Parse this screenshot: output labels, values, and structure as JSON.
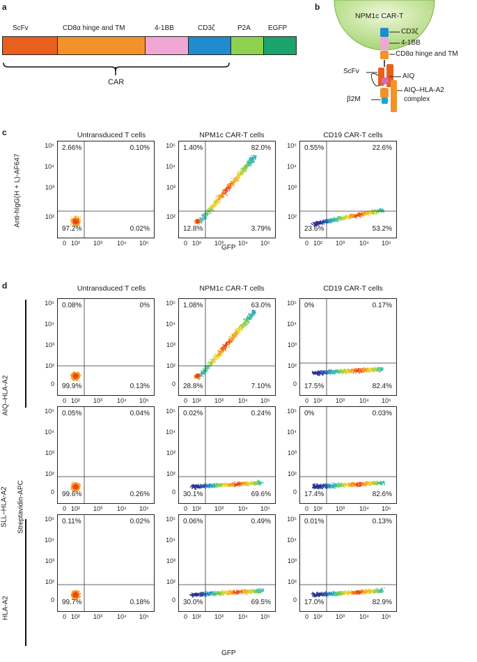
{
  "panel_a": {
    "letter": "a",
    "segments": [
      {
        "label": "ScFv",
        "color": "#e8601c"
      },
      {
        "label": "CD8α hinge and TM",
        "color": "#f4922a"
      },
      {
        "label": "4-1BB",
        "color": "#f0a7d3"
      },
      {
        "label": "CD3ζ",
        "color": "#1e8ccd"
      },
      {
        "label": "P2A",
        "color": "#8fd14f"
      },
      {
        "label": "EGFP",
        "color": "#1aa36a"
      }
    ],
    "bracket_label": "CAR"
  },
  "panel_b": {
    "letter": "b",
    "cell_label": "NPM1c CAR-T",
    "labels": [
      "CD3ζ",
      "4-1BB",
      "CD8α hinge and TM",
      "ScFv",
      "AIQ",
      "AIQ–HLA-A2",
      "complex",
      "β2M"
    ]
  },
  "panel_c": {
    "letter": "c",
    "column_titles": [
      "Untransduced T cells",
      "NPM1c CAR-T cells",
      "CD19 CAR-T cells"
    ],
    "y_axis_label": "Anti-hIgG(H + L)-AF647",
    "x_axis_label": "GFP",
    "x_ticks": [
      "0",
      "10²",
      "10³",
      "10⁴",
      "10⁵"
    ],
    "y_ticks": [
      "10⁵",
      "10⁴",
      "10³",
      "10²"
    ],
    "plots": [
      {
        "ul": "2.66%",
        "ur": "0.10%",
        "ll": "97.2%",
        "lr": "0.02%"
      },
      {
        "ul": "1.40%",
        "ur": "82.0%",
        "ll": "12.8%",
        "lr": "3.79%"
      },
      {
        "ul": "0.55%",
        "ur": "22.6%",
        "ll": "23.6%",
        "lr": "53.2%"
      }
    ]
  },
  "panel_d": {
    "letter": "d",
    "column_titles": [
      "Untransduced T cells",
      "NPM1c CAR-T cells",
      "CD19 CAR-T cells"
    ],
    "row_labels": [
      "AIQ–HLA-A2",
      "SLL–HLA-A2",
      "HLA-A2"
    ],
    "y_axis_label": "Streptavidin-APC",
    "x_axis_label": "GFP",
    "x_ticks": [
      "0",
      "10²",
      "10³",
      "10⁴",
      "10⁵"
    ],
    "y_ticks": [
      "10⁵",
      "10⁴",
      "10³",
      "10²",
      "0"
    ],
    "rows": [
      [
        {
          "ul": "0.08%",
          "ur": "0%",
          "ll": "99.9%",
          "lr": "0.13%"
        },
        {
          "ul": "1.08%",
          "ur": "63.0%",
          "ll": "28.8%",
          "lr": "7.10%"
        },
        {
          "ul": "0%",
          "ur": "0.17%",
          "ll": "17.5%",
          "lr": "82.4%"
        }
      ],
      [
        {
          "ul": "0.05%",
          "ur": "0.04%",
          "ll": "99.6%",
          "lr": "0.26%"
        },
        {
          "ul": "0.02%",
          "ur": "0.24%",
          "ll": "30.1%",
          "lr": "69.6%"
        },
        {
          "ul": "0%",
          "ur": "0.03%",
          "ll": "17.4%",
          "lr": "82.6%"
        }
      ],
      [
        {
          "ul": "0.11%",
          "ur": "0.02%",
          "ll": "99.7%",
          "lr": "0.18%"
        },
        {
          "ul": "0.06%",
          "ur": "0.49%",
          "ll": "30.0%",
          "lr": "69.5%"
        },
        {
          "ul": "0.01%",
          "ur": "0.13%",
          "ll": "17.0%",
          "lr": "82.9%"
        }
      ]
    ]
  }
}
